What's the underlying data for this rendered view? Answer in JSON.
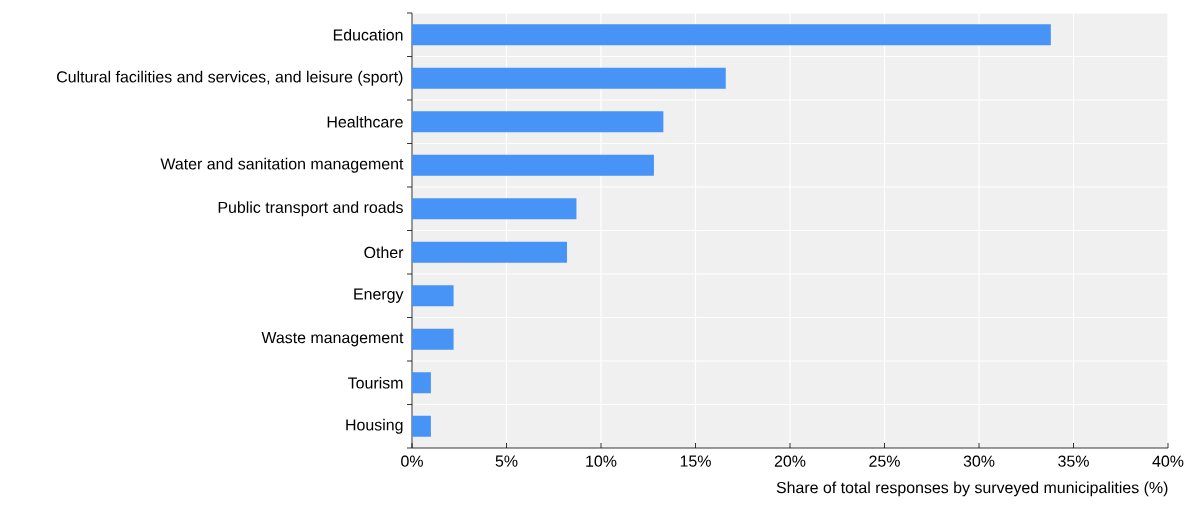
{
  "chart_data": {
    "type": "bar",
    "orientation": "horizontal",
    "xlabel": "Share of total responses by surveyed municipalities (%)",
    "categories": [
      "Education",
      "Cultural facilities and services, and leisure (sport)",
      "Healthcare",
      "Water and sanitation management",
      "Public transport and roads",
      "Other",
      "Energy",
      "Waste management",
      "Tourism",
      "Housing"
    ],
    "values": [
      33.8,
      16.6,
      13.3,
      12.8,
      8.7,
      8.2,
      2.2,
      2.2,
      1.0,
      1.0
    ],
    "color": "#4793f6",
    "xlim": [
      0,
      40
    ],
    "xticks": [
      {
        "value": 0,
        "label": "0%"
      },
      {
        "value": 5,
        "label": "5%"
      },
      {
        "value": 10,
        "label": "10%"
      },
      {
        "value": 15,
        "label": "15%"
      },
      {
        "value": 20,
        "label": "20%"
      },
      {
        "value": 25,
        "label": "25%"
      },
      {
        "value": 30,
        "label": "30%"
      },
      {
        "value": 35,
        "label": "35%"
      },
      {
        "value": 40,
        "label": "40%"
      }
    ],
    "grid": true
  }
}
